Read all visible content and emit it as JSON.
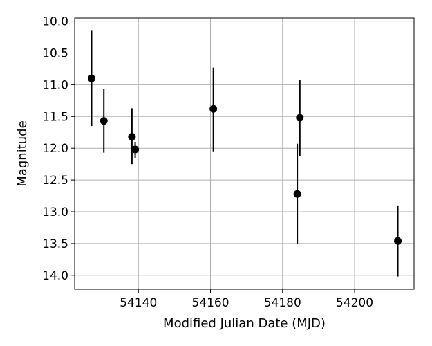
{
  "chart_data": {
    "type": "scatter",
    "title": "",
    "xlabel": "Modified Julian Date (MJD)",
    "ylabel": "Magnitude",
    "xlim": [
      54122.3,
      54216.5
    ],
    "ylim": [
      14.22,
      9.95
    ],
    "y_inverted": true,
    "grid": true,
    "xticks": [
      54140,
      54160,
      54180,
      54200
    ],
    "xtick_labels": [
      "54140",
      "54160",
      "54180",
      "54200"
    ],
    "yticks": [
      10.0,
      10.5,
      11.0,
      11.5,
      12.0,
      12.5,
      13.0,
      13.5,
      14.0
    ],
    "ytick_labels": [
      "10.0",
      "10.5",
      "11.0",
      "11.5",
      "12.0",
      "12.5",
      "13.0",
      "13.5",
      "14.0"
    ],
    "marker_color": "#000000",
    "grid_color": "#b0b0b0",
    "points": [
      {
        "x": 54127.0,
        "y": 10.9,
        "yerr_low": 10.15,
        "yerr_high": 11.65
      },
      {
        "x": 54130.4,
        "y": 11.57,
        "yerr_low": 11.07,
        "yerr_high": 12.07
      },
      {
        "x": 54138.2,
        "y": 11.82,
        "yerr_low": 11.37,
        "yerr_high": 12.25
      },
      {
        "x": 54139.1,
        "y": 12.02,
        "yerr_low": 11.9,
        "yerr_high": 12.15
      },
      {
        "x": 54160.8,
        "y": 11.38,
        "yerr_low": 10.73,
        "yerr_high": 12.05
      },
      {
        "x": 54184.1,
        "y": 12.72,
        "yerr_low": 11.93,
        "yerr_high": 13.5
      },
      {
        "x": 54184.8,
        "y": 11.52,
        "yerr_low": 10.93,
        "yerr_high": 12.12
      },
      {
        "x": 54212.0,
        "y": 13.46,
        "yerr_low": 12.9,
        "yerr_high": 14.02
      }
    ]
  }
}
